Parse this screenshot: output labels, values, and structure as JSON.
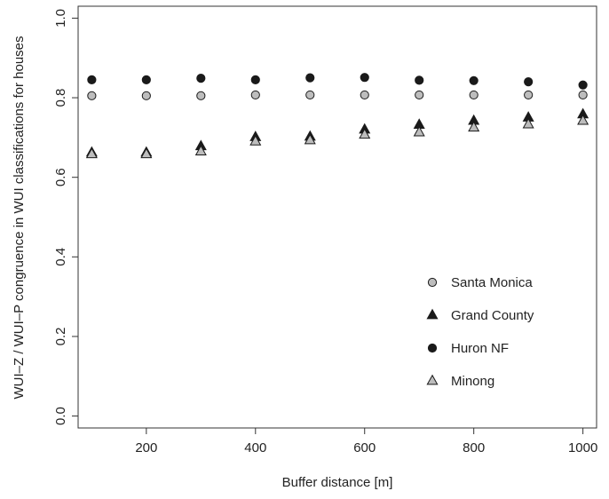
{
  "chart_data": {
    "type": "scatter",
    "xlabel": "Buffer distance [m]",
    "ylabel": "WUI–Z / WUI–P congruence in WUI classifications for houses",
    "xlim": [
      75,
      1025
    ],
    "ylim": [
      -0.03,
      1.03
    ],
    "x_ticks": [
      200,
      400,
      600,
      800,
      1000
    ],
    "y_ticks": [
      0.0,
      0.2,
      0.4,
      0.6,
      0.8,
      1.0
    ],
    "x_tick_labels": [
      "200",
      "400",
      "600",
      "800",
      "1000"
    ],
    "y_tick_labels": [
      "0.0",
      "0.2",
      "0.4",
      "0.6",
      "0.8",
      "1.0"
    ],
    "grid": false,
    "legend_position": "bottom-right",
    "x": [
      100,
      200,
      300,
      400,
      500,
      600,
      700,
      800,
      900,
      1000
    ],
    "series": [
      {
        "name": "Santa Monica",
        "marker": "circle",
        "fill": "#bdbdbd",
        "values": [
          0.805,
          0.805,
          0.805,
          0.807,
          0.807,
          0.807,
          0.807,
          0.807,
          0.807,
          0.807
        ]
      },
      {
        "name": "Grand County",
        "marker": "triangle",
        "fill": "#1a1a1a",
        "values": [
          0.662,
          0.662,
          0.678,
          0.701,
          0.702,
          0.72,
          0.732,
          0.742,
          0.75,
          0.758
        ]
      },
      {
        "name": "Huron NF",
        "marker": "circle",
        "fill": "#1a1a1a",
        "values": [
          0.845,
          0.845,
          0.849,
          0.845,
          0.85,
          0.851,
          0.844,
          0.843,
          0.84,
          0.832
        ]
      },
      {
        "name": "Minong",
        "marker": "triangle",
        "fill": "#bdbdbd",
        "values": [
          0.658,
          0.658,
          0.665,
          0.69,
          0.693,
          0.707,
          0.713,
          0.725,
          0.733,
          0.742
        ]
      }
    ],
    "legend_order": [
      "Santa Monica",
      "Grand County",
      "Huron NF",
      "Minong"
    ]
  }
}
